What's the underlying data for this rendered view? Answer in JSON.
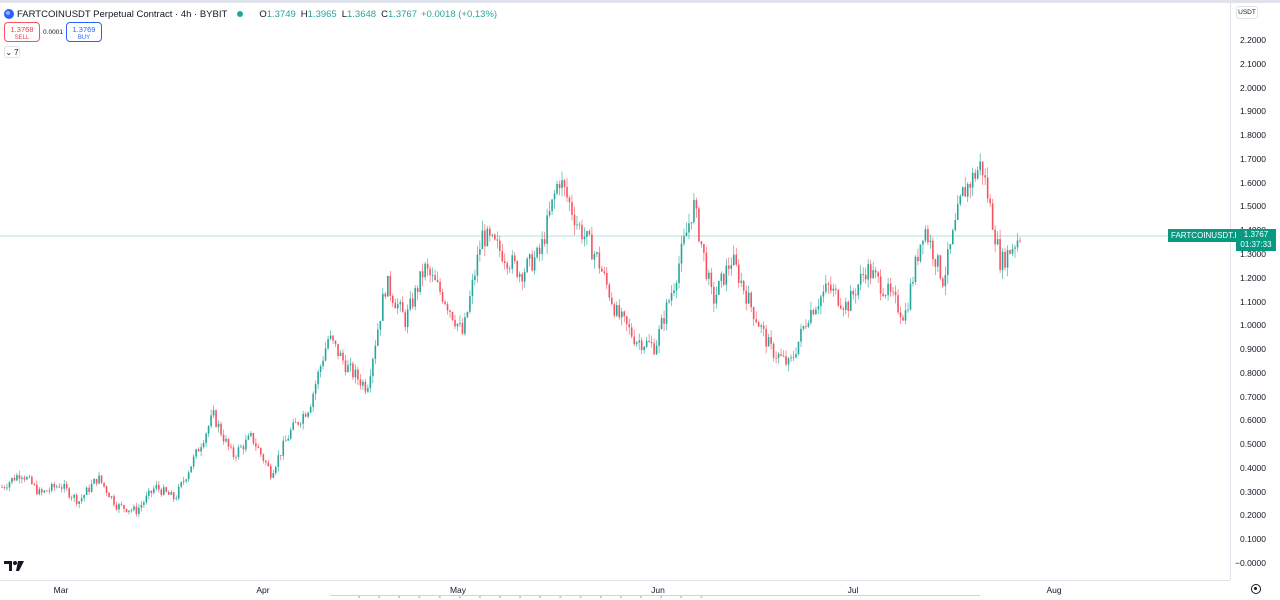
{
  "header": {
    "title": "FARTCOINUSDT Perpetual Contract · 4h · BYBIT",
    "open_label": "O",
    "open": "1.3749",
    "high_label": "H",
    "high": "1.3965",
    "low_label": "L",
    "low": "1.3648",
    "close_label": "C",
    "close": "1.3767",
    "change": "+0.0018 (+0.13%)"
  },
  "trade": {
    "sell_price": "1.3768",
    "sell_label": "SELL",
    "spread": "0.0001",
    "buy_price": "1.3769",
    "buy_label": "BUY"
  },
  "indicators_count": "7",
  "currency": "USDT",
  "last_price": {
    "symbol": "FARTCOINUSDT.P",
    "price": "1.3767",
    "countdown": "01:37:33"
  },
  "colors": {
    "up": "#26a69a",
    "down": "#f7525f",
    "line": "#089981"
  },
  "chart_data": {
    "type": "candlestick",
    "y_ticks": [
      "2.2000",
      "2.1000",
      "2.0000",
      "1.9000",
      "1.8000",
      "1.7000",
      "1.6000",
      "1.5000",
      "1.4000",
      "1.3000",
      "1.2000",
      "1.1000",
      "1.0000",
      "0.9000",
      "0.8000",
      "0.7000",
      "0.6000",
      "0.5000",
      "0.4000",
      "0.3000",
      "0.2000",
      "0.1000",
      "−0.0000"
    ],
    "ylim": [
      0,
      2.2
    ],
    "x_labels": [
      "Mar",
      "Apr",
      "May",
      "Jun",
      "Jul",
      "Aug"
    ],
    "current_price": 1.3767,
    "close_path": [
      [
        "Feb 24",
        0.32
      ],
      [
        "Feb 27",
        0.38
      ],
      [
        "Mar 1",
        0.29
      ],
      [
        "Mar 4",
        0.33
      ],
      [
        "Mar 7",
        0.26
      ],
      [
        "Mar 10",
        0.36
      ],
      [
        "Mar 13",
        0.24
      ],
      [
        "Mar 16",
        0.22
      ],
      [
        "Mar 19",
        0.32
      ],
      [
        "Mar 22",
        0.27
      ],
      [
        "Mar 25",
        0.44
      ],
      [
        "Mar 28",
        0.62
      ],
      [
        "Mar 31",
        0.45
      ],
      [
        "Apr 2",
        0.53
      ],
      [
        "Apr 5",
        0.38
      ],
      [
        "Apr 8",
        0.55
      ],
      [
        "Apr 11",
        0.66
      ],
      [
        "Apr 14",
        0.95
      ],
      [
        "Apr 17",
        0.82
      ],
      [
        "Apr 20",
        0.74
      ],
      [
        "Apr 23",
        1.18
      ],
      [
        "Apr 26",
        1.02
      ],
      [
        "Apr 29",
        1.24
      ],
      [
        "May 1",
        1.12
      ],
      [
        "May 4",
        0.96
      ],
      [
        "May 6",
        1.38
      ],
      [
        "May 9",
        1.31
      ],
      [
        "May 11",
        1.22
      ],
      [
        "May 14",
        1.3
      ],
      [
        "May 17",
        1.62
      ],
      [
        "May 20",
        1.42
      ],
      [
        "May 23",
        1.28
      ],
      [
        "May 26",
        1.05
      ],
      [
        "May 29",
        0.94
      ],
      [
        "Jun 1",
        0.91
      ],
      [
        "Jun 4",
        1.18
      ],
      [
        "Jun 7",
        1.51
      ],
      [
        "Jun 10",
        1.1
      ],
      [
        "Jun 13",
        1.28
      ],
      [
        "Jun 16",
        1.08
      ],
      [
        "Jun 19",
        0.9
      ],
      [
        "Jun 22",
        0.83
      ],
      [
        "Jun 25",
        1.05
      ],
      [
        "Jun 28",
        1.16
      ],
      [
        "Jul 1",
        1.08
      ],
      [
        "Jul 4",
        1.24
      ],
      [
        "Jul 7",
        1.15
      ],
      [
        "Jul 10",
        1.04
      ],
      [
        "Jul 13",
        1.42
      ],
      [
        "Jul 16",
        1.19
      ],
      [
        "Jul 19",
        1.55
      ],
      [
        "Jul 22",
        1.68
      ],
      [
        "Jul 24",
        1.26
      ],
      [
        "Jul 26",
        1.38
      ]
    ]
  }
}
